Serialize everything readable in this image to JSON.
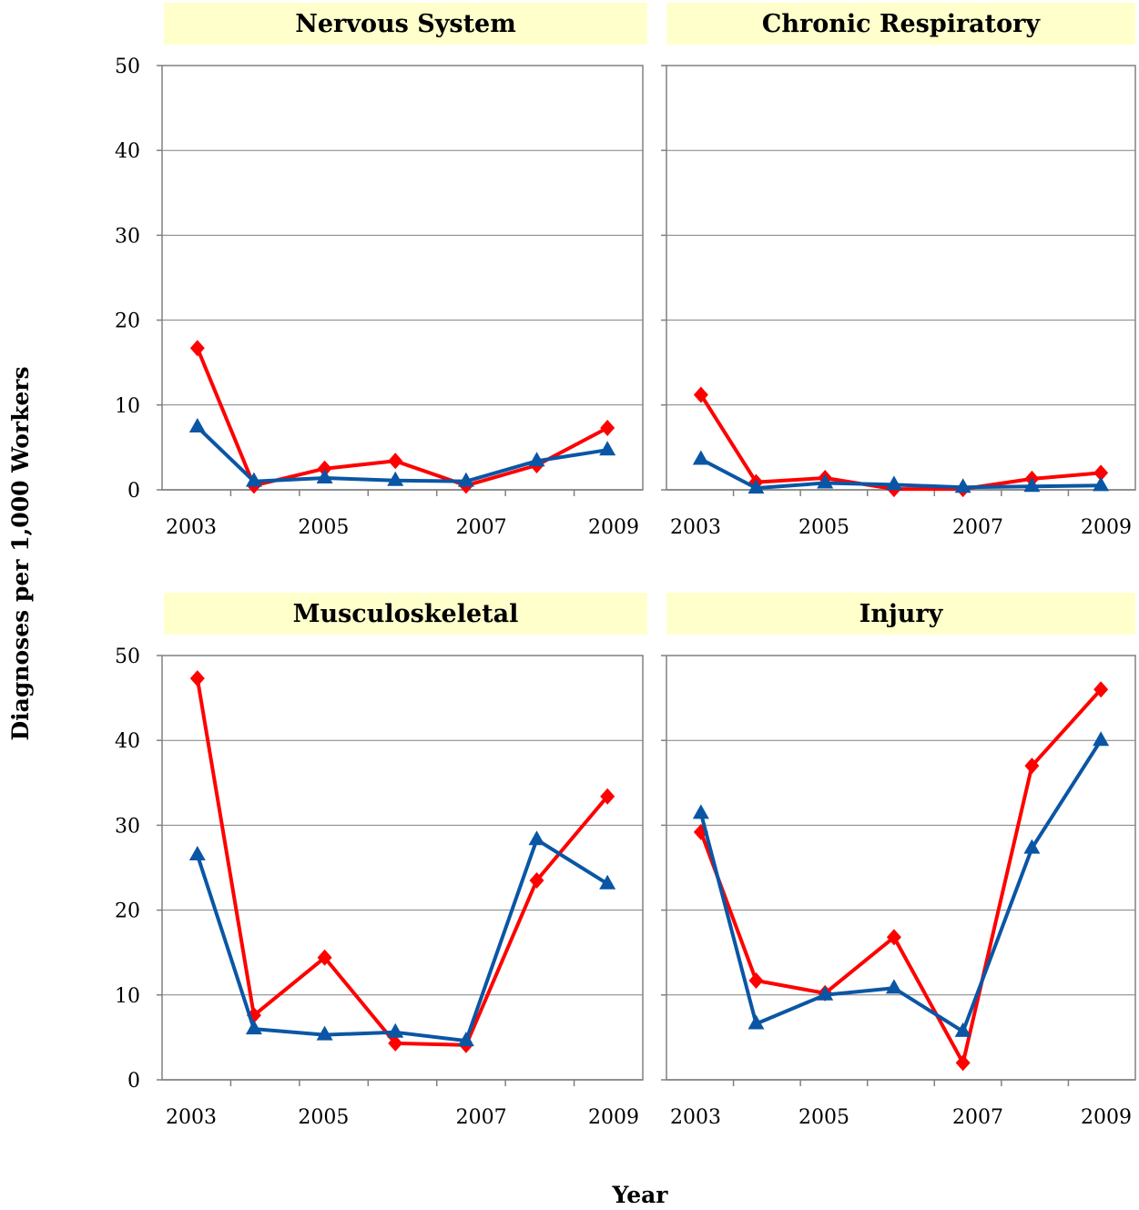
{
  "figure": {
    "ylabel": "Diagnoses per 1,000 Workers",
    "xlabel": "Year"
  },
  "colors": {
    "series_a": "#ff0000",
    "series_b": "#0a56a5",
    "title_band": "#ffffcc",
    "gridline": "#808080"
  },
  "chart_data": [
    {
      "type": "line",
      "title": "Nervous System",
      "x": [
        2003.3,
        2004.1,
        2005.1,
        2006.1,
        2007.1,
        2008.1,
        2009.1
      ],
      "xlim": [
        2002.8,
        2009.6
      ],
      "xticklabels": [
        "2003",
        "2005",
        "2007",
        "2009"
      ],
      "ylim": [
        0,
        50
      ],
      "yticks": [
        0,
        10,
        20,
        30,
        40,
        50
      ],
      "grid": true,
      "series": [
        {
          "marker": "diamond",
          "color": "#ff0000",
          "values": [
            16.7,
            0.5,
            2.5,
            3.4,
            0.5,
            2.9,
            7.3
          ]
        },
        {
          "marker": "triangle",
          "color": "#0a56a5",
          "values": [
            7.4,
            1.0,
            1.4,
            1.1,
            1.0,
            3.4,
            4.7
          ]
        }
      ]
    },
    {
      "type": "line",
      "title": "Chronic Respiratory",
      "x": [
        2003.3,
        2004.1,
        2005.1,
        2006.1,
        2007.1,
        2008.1,
        2009.1
      ],
      "xlim": [
        2002.8,
        2009.6
      ],
      "xticklabels": [
        "2003",
        "2005",
        "2007",
        "2009"
      ],
      "ylim": [
        0,
        50
      ],
      "yticks": [
        0,
        10,
        20,
        30,
        40,
        50
      ],
      "grid": true,
      "series": [
        {
          "marker": "diamond",
          "color": "#ff0000",
          "values": [
            11.2,
            0.9,
            1.4,
            0.1,
            0.1,
            1.3,
            2.0
          ]
        },
        {
          "marker": "triangle",
          "color": "#0a56a5",
          "values": [
            3.6,
            0.2,
            0.8,
            0.6,
            0.3,
            0.4,
            0.5
          ]
        }
      ]
    },
    {
      "type": "line",
      "title": "Musculoskeletal",
      "x": [
        2003.3,
        2004.1,
        2005.1,
        2006.1,
        2007.1,
        2008.1,
        2009.1
      ],
      "xlim": [
        2002.8,
        2009.6
      ],
      "xticklabels": [
        "2003",
        "2005",
        "2007",
        "2009"
      ],
      "ylim": [
        0,
        50
      ],
      "yticks": [
        0,
        10,
        20,
        30,
        40,
        50
      ],
      "grid": true,
      "series": [
        {
          "marker": "diamond",
          "color": "#ff0000",
          "values": [
            47.3,
            7.6,
            14.4,
            4.3,
            4.1,
            23.5,
            33.4
          ]
        },
        {
          "marker": "triangle",
          "color": "#0a56a5",
          "values": [
            26.5,
            6.0,
            5.3,
            5.6,
            4.6,
            28.3,
            23.1
          ]
        }
      ]
    },
    {
      "type": "line",
      "title": "Injury",
      "x": [
        2003.3,
        2004.1,
        2005.1,
        2006.1,
        2007.1,
        2008.1,
        2009.1
      ],
      "xlim": [
        2002.8,
        2009.6
      ],
      "xticklabels": [
        "2003",
        "2005",
        "2007",
        "2009"
      ],
      "ylim": [
        0,
        50
      ],
      "yticks": [
        0,
        10,
        20,
        30,
        40,
        50
      ],
      "grid": true,
      "series": [
        {
          "marker": "diamond",
          "color": "#ff0000",
          "values": [
            29.2,
            11.7,
            10.2,
            16.8,
            2.0,
            37.0,
            46.0
          ]
        },
        {
          "marker": "triangle",
          "color": "#0a56a5",
          "values": [
            31.4,
            6.6,
            10.0,
            10.8,
            5.7,
            27.3,
            40.0
          ]
        }
      ]
    }
  ]
}
